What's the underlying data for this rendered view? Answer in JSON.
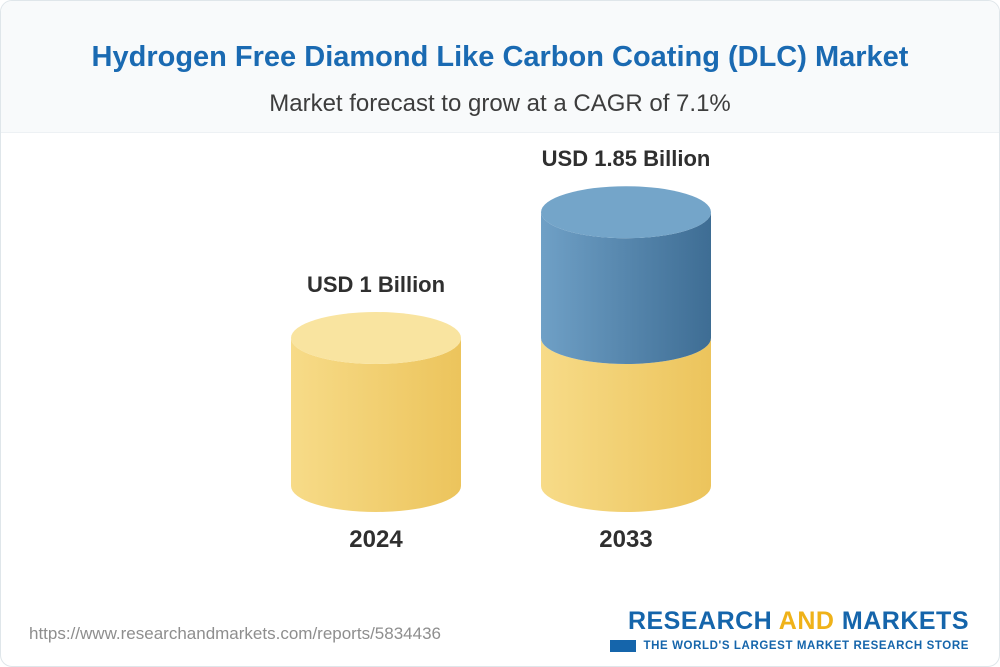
{
  "header": {
    "title": "Hydrogen Free Diamond Like Carbon Coating (DLC) Market",
    "subtitle": "Market forecast to grow at a CAGR of 7.1%"
  },
  "chart_data": {
    "type": "bar",
    "subtype": "cylinder",
    "categories": [
      "2024",
      "2033"
    ],
    "values": [
      1,
      1.85
    ],
    "value_labels": [
      "USD 1 Billion",
      "USD 1.85 Billion"
    ],
    "base_value": 1,
    "unit": "USD Billion",
    "cagr": "7.1%",
    "ylim": [
      0,
      1.85
    ],
    "colors": {
      "base_body_left": "#F7DB88",
      "base_body_right": "#ECC45C",
      "base_cap": "#F9E4A0",
      "growth_body_left": "#6FA0C6",
      "growth_body_right": "#3E6D94",
      "growth_cap": "#74A5C9"
    }
  },
  "footer": {
    "url": "https://www.researchandmarkets.com/reports/5834436",
    "logo": {
      "research": "RESEARCH",
      "and": "AND",
      "markets": "MARKETS",
      "tagline": "THE WORLD'S LARGEST MARKET RESEARCH STORE"
    }
  }
}
